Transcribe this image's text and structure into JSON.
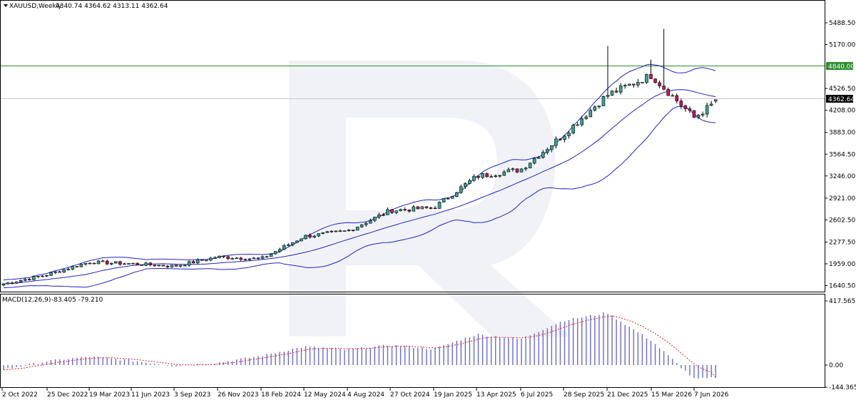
{
  "header": {
    "symbol_timeframe": "XAUUSD,Weekly",
    "ohlc": "4340.74 4364.62 4313.11 4362.64"
  },
  "macd": {
    "label": "MACD(12,26,9)",
    "values": "-83.405 -79.210",
    "scale_labels": [
      "417.565",
      "0.00",
      "-144.365"
    ]
  },
  "price_axis": {
    "labels": [
      "5488.50",
      "5170.00",
      "4526.50",
      "4208.00",
      "3883.00",
      "3564.50",
      "3246.00",
      "2921.00",
      "2602.50",
      "2277.50",
      "1959.00",
      "1640.50"
    ]
  },
  "markers": {
    "level_label": "4840.00",
    "level_color": "#2e8b2e",
    "current_label": "4362.64"
  },
  "time_axis": {
    "labels": [
      "2 Oct 2022",
      "25 Dec 2022",
      "19 Mar 2023",
      "11 Jun 2023",
      "3 Sep 2023",
      "26 Nov 2023",
      "18 Feb 2024",
      "12 May 2024",
      "4 Aug 2024",
      "27 Oct 2024",
      "19 Jan 2025",
      "13 Apr 2025",
      "6 Jul 2025",
      "28 Sep 2025",
      "21 Dec 2025",
      "15 Mar 2026",
      "7 Jun 2026"
    ]
  },
  "colors": {
    "bull": "#3aa38f",
    "bear": "#c0175d",
    "bands": "#2020c8",
    "macd_hist": "#6a6ad0",
    "signal": "#e02020",
    "grid": "#c8c8c8"
  },
  "chart_data": [
    {
      "type": "candlestick",
      "title": "XAUUSD,Weekly",
      "ylim": [
        1560,
        5700
      ],
      "yticks": [
        5488.5,
        5170.0,
        4526.5,
        4208.0,
        3883.0,
        3564.5,
        3246.0,
        2921.0,
        2602.5,
        2277.5,
        1959.0,
        1640.5
      ],
      "horizontal_levels": [
        4840.0,
        4362.64
      ],
      "last_bar": {
        "open": 4340.74,
        "high": 4364.62,
        "low": 4313.11,
        "close": 4362.64
      },
      "close_path": [
        {
          "x": "2 Oct 2022",
          "y": 1660
        },
        {
          "x": "25 Dec 2022",
          "y": 1800
        },
        {
          "x": "19 Mar 2023",
          "y": 1985
        },
        {
          "x": "11 Jun 2023",
          "y": 1960
        },
        {
          "x": "3 Sep 2023",
          "y": 1925
        },
        {
          "x": "26 Nov 2023",
          "y": 2060
        },
        {
          "x": "18 Feb 2024",
          "y": 2030
        },
        {
          "x": "12 May 2024",
          "y": 2360
        },
        {
          "x": "4 Aug 2024",
          "y": 2440
        },
        {
          "x": "27 Oct 2024",
          "y": 2740
        },
        {
          "x": "19 Jan 2025",
          "y": 2780
        },
        {
          "x": "13 Apr 2025",
          "y": 3240
        },
        {
          "x": "6 Jul 2025",
          "y": 3340
        },
        {
          "x": "28 Sep 2025",
          "y": 3850
        },
        {
          "x": "21 Dec 2025",
          "y": 4430
        },
        {
          "x": "15 Mar 2026",
          "y": 4720
        },
        {
          "x": "7 Jun 2026",
          "y": 4100
        },
        {
          "x": "last",
          "y": 4362.64
        }
      ],
      "events": [
        {
          "x": "21 Dec 2025",
          "y": 5150
        },
        {
          "x": "15 Mar 2026",
          "y": 5400
        },
        {
          "x": "15 Mar 2026",
          "y": 4950
        }
      ]
    },
    {
      "type": "bar",
      "title": "MACD(12,26,9)",
      "ylim": [
        -144.365,
        417.565
      ],
      "last_values": {
        "macd": -83.405,
        "signal": -79.21
      },
      "macd_path": [
        {
          "x": "2 Oct 2022",
          "y": -30
        },
        {
          "x": "25 Dec 2022",
          "y": 25
        },
        {
          "x": "19 Mar 2023",
          "y": 55
        },
        {
          "x": "11 Jun 2023",
          "y": 30
        },
        {
          "x": "3 Sep 2023",
          "y": -5
        },
        {
          "x": "26 Nov 2023",
          "y": 15
        },
        {
          "x": "18 Feb 2024",
          "y": 60
        },
        {
          "x": "12 May 2024",
          "y": 120
        },
        {
          "x": "4 Aug 2024",
          "y": 100
        },
        {
          "x": "27 Oct 2024",
          "y": 130
        },
        {
          "x": "19 Jan 2025",
          "y": 105
        },
        {
          "x": "13 Apr 2025",
          "y": 200
        },
        {
          "x": "6 Jul 2025",
          "y": 170
        },
        {
          "x": "28 Sep 2025",
          "y": 290
        },
        {
          "x": "21 Dec 2025",
          "y": 340
        },
        {
          "x": "15 Mar 2026",
          "y": 160
        },
        {
          "x": "7 Jun 2026",
          "y": -90
        },
        {
          "x": "last",
          "y": -83.405
        }
      ]
    }
  ]
}
